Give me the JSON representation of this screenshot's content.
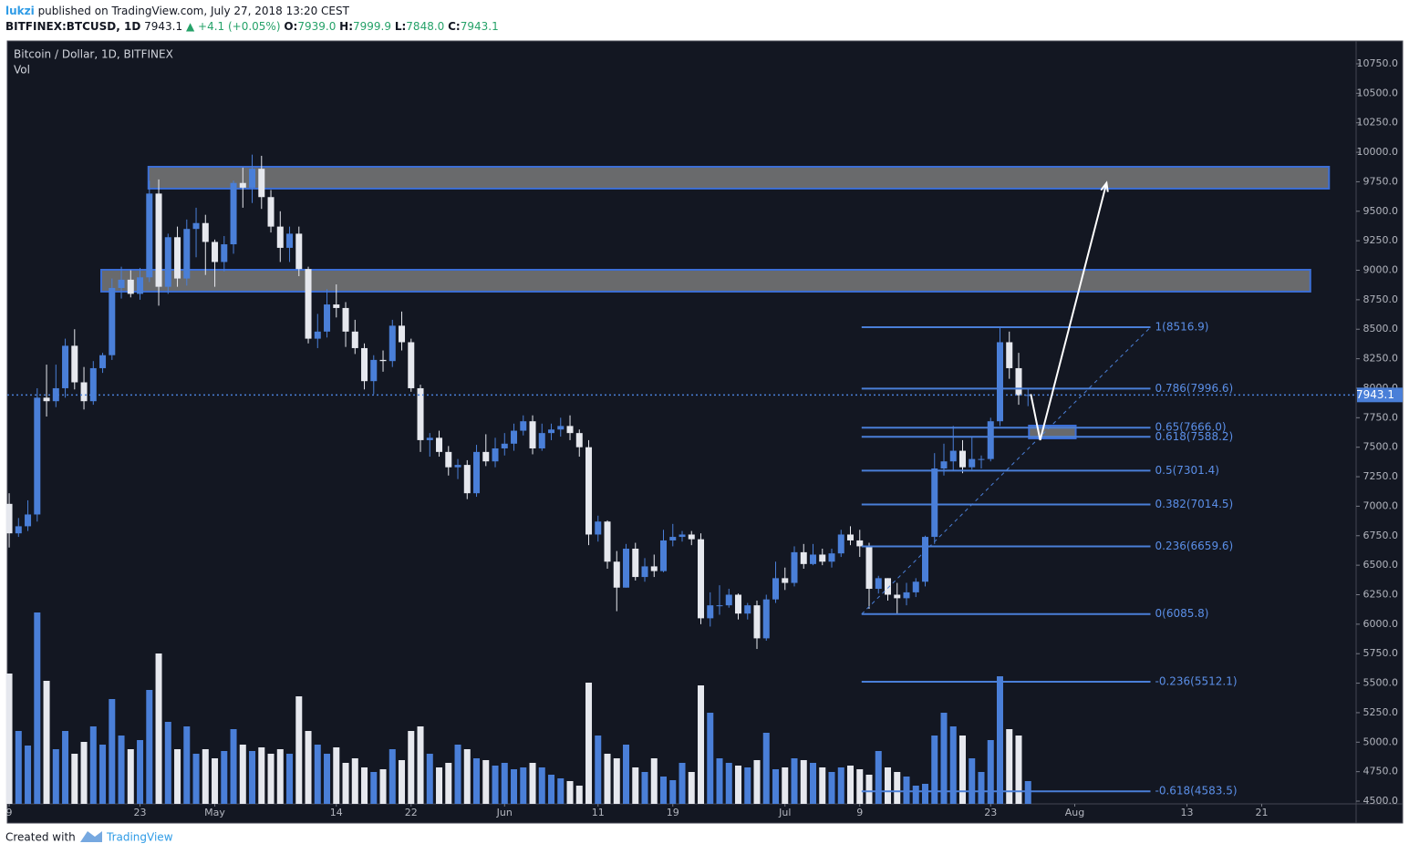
{
  "header": {
    "user": "lukzi",
    "published": "published on TradingView.com, July 27, 2018 13:20 CEST",
    "symbol": "BITFINEX:BTCUSD, 1D",
    "last": "7943.1",
    "arrow": "▲",
    "change": "+4.1 (+0.05%)",
    "o_label": "O:",
    "o": "7939.0",
    "h_label": "H:",
    "h": "7999.9",
    "l_label": "L:",
    "l": "7848.0",
    "c_label": "C:",
    "c": "7943.1"
  },
  "footer": {
    "created": "Created with",
    "brand": "TradingView"
  },
  "chart_data": {
    "type": "candlestick",
    "title": "Bitcoin / Dollar, 1D, BITFINEX",
    "volume_label": "Vol",
    "up_color": "#4a7fd8",
    "down_color": "#e6e8ee",
    "open": [
      7020,
      6770,
      6830,
      6930,
      7920,
      7890,
      8000,
      8360,
      8050,
      7890,
      8170,
      8280,
      8850,
      8920,
      8800,
      8940,
      9650,
      8860,
      9280,
      8930,
      9350,
      9400,
      9240,
      9070,
      9220,
      9740,
      9700,
      9860,
      9620,
      9370,
      9190,
      9310,
      9010,
      8420,
      8480,
      8710,
      8680,
      8480,
      8340,
      8060,
      8240,
      8230,
      8530,
      8390,
      8000,
      7560,
      7580,
      7460,
      7330,
      7350,
      7110,
      7460,
      7380,
      7490,
      7530,
      7640,
      7720,
      7490,
      7620,
      7650,
      7680,
      7620,
      7500,
      6760,
      6870,
      6530,
      6310,
      6640,
      6400,
      6490,
      6450,
      6710,
      6740,
      6760,
      6720,
      6050,
      6160,
      6160,
      6250,
      6090,
      6160,
      5880,
      6210,
      6390,
      6350,
      6610,
      6510,
      6590,
      6530,
      6600,
      6760,
      6710,
      6660,
      6300,
      6390,
      6250,
      6220,
      6270,
      6360,
      6740,
      7320,
      7380,
      7470,
      7330,
      7400,
      7400,
      7720,
      8390,
      8170,
      7939.0
    ],
    "high": [
      7110,
      6900,
      7050,
      8000,
      8200,
      8200,
      8420,
      8500,
      8180,
      8230,
      8300,
      8930,
      9030,
      9000,
      9020,
      9760,
      9770,
      9310,
      9370,
      9430,
      9530,
      9470,
      9260,
      9290,
      9760,
      9870,
      9980,
      9970,
      9680,
      9500,
      9370,
      9370,
      9030,
      8630,
      8840,
      8880,
      8730,
      8580,
      8380,
      8280,
      8320,
      8580,
      8650,
      8420,
      8030,
      7620,
      7640,
      7510,
      7400,
      7390,
      7520,
      7610,
      7580,
      7620,
      7700,
      7770,
      7770,
      7700,
      7700,
      7750,
      7770,
      7650,
      7560,
      6920,
      6880,
      6620,
      6680,
      6690,
      6560,
      6590,
      6800,
      6850,
      6790,
      6790,
      6770,
      6270,
      6330,
      6300,
      6260,
      6180,
      6200,
      6250,
      6530,
      6480,
      6660,
      6680,
      6680,
      6640,
      6640,
      6800,
      6830,
      6800,
      6690,
      6410,
      6390,
      6350,
      6350,
      6390,
      6750,
      7450,
      7530,
      7680,
      7560,
      7590,
      7430,
      7750,
      8520,
      8480,
      8300,
      7999.9
    ],
    "low": [
      6650,
      6740,
      6790,
      6870,
      7760,
      7840,
      7920,
      7990,
      7820,
      7860,
      8130,
      8240,
      8760,
      8770,
      8750,
      8900,
      8700,
      8800,
      8860,
      8870,
      9110,
      8960,
      8860,
      8990,
      9140,
      9530,
      9570,
      9520,
      9320,
      9070,
      9070,
      8950,
      8380,
      8340,
      8430,
      8600,
      8350,
      8290,
      7990,
      7950,
      8140,
      8180,
      8320,
      7970,
      7460,
      7420,
      7420,
      7260,
      7230,
      7060,
      7080,
      7340,
      7330,
      7430,
      7470,
      7600,
      7440,
      7470,
      7560,
      7590,
      7560,
      7420,
      6670,
      6700,
      6470,
      6110,
      6310,
      6370,
      6360,
      6400,
      6440,
      6660,
      6700,
      6670,
      6000,
      5980,
      6080,
      6140,
      6040,
      6040,
      5790,
      5860,
      6180,
      6290,
      6320,
      6470,
      6500,
      6500,
      6480,
      6570,
      6670,
      6570,
      6130,
      6260,
      6200,
      6080,
      6160,
      6230,
      6320,
      6680,
      7260,
      7300,
      7280,
      7310,
      7320,
      7380,
      7680,
      8080,
      7860,
      7848.0
    ],
    "close": [
      6770,
      6830,
      6930,
      7920,
      7890,
      8000,
      8360,
      8050,
      7890,
      8170,
      8280,
      8850,
      8920,
      8800,
      8940,
      9650,
      8860,
      9280,
      8930,
      9350,
      9400,
      9240,
      9070,
      9220,
      9740,
      9700,
      9860,
      9620,
      9370,
      9190,
      9310,
      9010,
      8420,
      8480,
      8710,
      8680,
      8480,
      8340,
      8060,
      8240,
      8230,
      8530,
      8390,
      8000,
      7560,
      7580,
      7460,
      7330,
      7350,
      7110,
      7460,
      7380,
      7490,
      7530,
      7640,
      7720,
      7490,
      7620,
      7650,
      7680,
      7620,
      7500,
      6760,
      6870,
      6530,
      6310,
      6640,
      6400,
      6490,
      6450,
      6710,
      6740,
      6760,
      6720,
      6050,
      6160,
      6160,
      6250,
      6090,
      6160,
      5880,
      6210,
      6390,
      6350,
      6610,
      6510,
      6590,
      6530,
      6600,
      6760,
      6710,
      6660,
      6300,
      6390,
      6250,
      6220,
      6270,
      6360,
      6740,
      7320,
      7380,
      7470,
      7330,
      7400,
      7400,
      7720,
      8390,
      8170,
      7940,
      7943.1
    ],
    "volume": [
      143,
      80,
      64,
      210,
      135,
      60,
      80,
      55,
      68,
      85,
      65,
      115,
      75,
      60,
      70,
      125,
      165,
      90,
      60,
      85,
      55,
      60,
      50,
      58,
      82,
      65,
      58,
      62,
      55,
      60,
      55,
      118,
      80,
      65,
      55,
      62,
      45,
      50,
      40,
      35,
      38,
      60,
      48,
      80,
      85,
      55,
      40,
      45,
      65,
      60,
      50,
      48,
      42,
      45,
      38,
      40,
      45,
      40,
      32,
      28,
      25,
      20,
      133,
      75,
      55,
      50,
      65,
      40,
      35,
      50,
      30,
      26,
      45,
      35,
      130,
      100,
      50,
      45,
      42,
      40,
      48,
      78,
      38,
      40,
      50,
      48,
      45,
      40,
      35,
      40,
      42,
      38,
      32,
      58,
      40,
      35,
      30,
      20,
      22,
      75,
      100,
      85,
      75,
      50,
      35,
      70,
      140,
      82,
      75,
      25
    ],
    "xlim": [
      -0.2,
      144.1
    ],
    "xticks": [
      {
        "value": 0,
        "label": "9"
      },
      {
        "value": 14,
        "label": "23"
      },
      {
        "value": 22,
        "label": "May"
      },
      {
        "value": 35,
        "label": "14"
      },
      {
        "value": 43,
        "label": "22"
      },
      {
        "value": 53,
        "label": "Jun"
      },
      {
        "value": 63,
        "label": "11"
      },
      {
        "value": 71,
        "label": "19"
      },
      {
        "value": 83,
        "label": "Jul"
      },
      {
        "value": 91,
        "label": "9"
      },
      {
        "value": 105,
        "label": "23"
      },
      {
        "value": 114,
        "label": "Aug"
      },
      {
        "value": 126,
        "label": "13"
      },
      {
        "value": 134,
        "label": "21"
      }
    ],
    "ylim": [
      4477,
      10943
    ],
    "yticks": [
      {
        "value": 4500,
        "label": "4500.0"
      },
      {
        "value": 4750,
        "label": "4750.0"
      },
      {
        "value": 5000,
        "label": "5000.0"
      },
      {
        "value": 5250,
        "label": "5250.0"
      },
      {
        "value": 5500,
        "label": "5500.0"
      },
      {
        "value": 5750,
        "label": "5750.0"
      },
      {
        "value": 6000,
        "label": "6000.0"
      },
      {
        "value": 6250,
        "label": "6250.0"
      },
      {
        "value": 6500,
        "label": "6500.0"
      },
      {
        "value": 6750,
        "label": "6750.0"
      },
      {
        "value": 7000,
        "label": "7000.0"
      },
      {
        "value": 7250,
        "label": "7250.0"
      },
      {
        "value": 7500,
        "label": "7500.0"
      },
      {
        "value": 7750,
        "label": "7750.0"
      },
      {
        "value": 8000,
        "label": "8000.0"
      },
      {
        "value": 8250,
        "label": "8250.0"
      },
      {
        "value": 8500,
        "label": "8500.0"
      },
      {
        "value": 8750,
        "label": "8750.0"
      },
      {
        "value": 9000,
        "label": "9000.0"
      },
      {
        "value": 9250,
        "label": "9250.0"
      },
      {
        "value": 9500,
        "label": "9500.0"
      },
      {
        "value": 9750,
        "label": "9750.0"
      },
      {
        "value": 10000,
        "label": "10000.0"
      },
      {
        "value": 10250,
        "label": "10250.0"
      },
      {
        "value": 10500,
        "label": "10500.0"
      },
      {
        "value": 10750,
        "label": "10750.0"
      }
    ],
    "grid": false,
    "last_price": {
      "value": 7943.1,
      "label": "7943.1"
    },
    "zones": [
      {
        "x": [
          14.9,
          141.2
        ],
        "y": [
          9692,
          9877
        ]
      },
      {
        "x": [
          9.85,
          139.2
        ],
        "y": [
          8819,
          9004
        ]
      },
      {
        "x": [
          109.1,
          114.1
        ],
        "y": [
          7575,
          7683
        ]
      }
    ],
    "fib_x": [
      91.2,
      122.1
    ],
    "fib_levels": [
      {
        "label": "1(8516.9)",
        "price": 8516.9
      },
      {
        "label": "0.786(7996.6)",
        "price": 7996.6
      },
      {
        "label": "0.65(7666.0)",
        "price": 7666.0
      },
      {
        "label": "0.618(7588.2)",
        "price": 7588.2
      },
      {
        "label": "0.5(7301.4)",
        "price": 7301.4
      },
      {
        "label": "0.382(7014.5)",
        "price": 7014.5
      },
      {
        "label": "0.236(6659.6)",
        "price": 6659.6
      },
      {
        "label": "0(6085.8)",
        "price": 6085.8
      },
      {
        "label": "-0.236(5512.1)",
        "price": 5512.1
      },
      {
        "label": "-0.618(4583.5)",
        "price": 4583.5
      }
    ],
    "trendline": {
      "x": [
        91.2,
        122.1
      ],
      "y": [
        6085.8,
        8516.9
      ]
    },
    "projection": {
      "x": [
        109.3,
        110.3,
        117.4
      ],
      "y": [
        7950,
        7560,
        9740
      ]
    }
  }
}
